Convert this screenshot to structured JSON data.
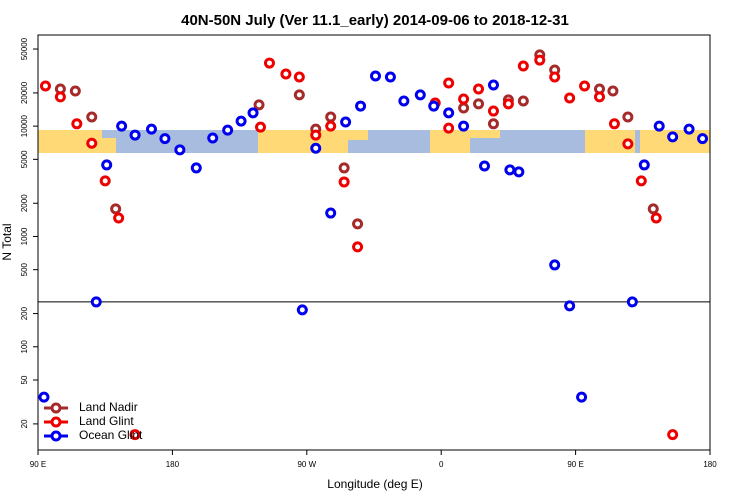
{
  "chart_data": {
    "type": "scatter",
    "title": "40N-50N July (Ver 11.1_early)   2014-09-06 to 2018-12-31",
    "x_label": "Longitude (deg E)",
    "y_label": "N Total",
    "log_y": true,
    "xlim": [
      90,
      540
    ],
    "xticks": [
      {
        "value": 90,
        "label": "90 E"
      },
      {
        "value": 180,
        "label": "180"
      },
      {
        "value": 270,
        "label": "90 W"
      },
      {
        "value": 360,
        "label": "0"
      },
      {
        "value": 450,
        "label": "90 E"
      },
      {
        "value": 540,
        "label": "180"
      }
    ],
    "ylim": [
      11.6,
      67000
    ],
    "yticks": [
      20,
      50,
      100,
      200,
      500,
      1000,
      2000,
      5000,
      10000,
      20000,
      50000
    ],
    "hline": 255,
    "legend": "bottom-left",
    "series": [
      {
        "name": "Land Nadir",
        "color": "#a52a2a",
        "x": [
          105,
          115,
          126,
          142,
          238,
          265,
          276,
          286,
          295,
          304,
          375,
          385,
          395,
          405,
          415,
          426,
          436,
          466,
          475,
          485,
          502
        ],
        "values": [
          21700,
          20800,
          12100,
          1780,
          15600,
          19200,
          9400,
          12100,
          4180,
          1300,
          14600,
          15900,
          10500,
          17300,
          16900,
          44200,
          32300,
          21700,
          20800,
          12100,
          1780
        ]
      },
      {
        "name": "Land Glint",
        "color": "#ee0000",
        "x": [
          95,
          105,
          116,
          126,
          135,
          144,
          155,
          239,
          245,
          256,
          265,
          276,
          286,
          295,
          304,
          356,
          365,
          365,
          375,
          385,
          395,
          405,
          415,
          426,
          436,
          446,
          456,
          466,
          476,
          485,
          494,
          504,
          515
        ],
        "values": [
          23100,
          18400,
          10500,
          7000,
          3190,
          1470,
          16,
          9800,
          37300,
          29700,
          27900,
          8300,
          10000,
          3120,
          805,
          16200,
          24600,
          9600,
          17600,
          21700,
          13700,
          15900,
          35100,
          39700,
          27900,
          18000,
          23100,
          18400,
          10500,
          6900,
          3190,
          1470,
          16
        ]
      },
      {
        "name": "Ocean Glint",
        "color": "#0000ee",
        "x": [
          94,
          129,
          136,
          146,
          155,
          166,
          175,
          185,
          196,
          207,
          217,
          226,
          234,
          267,
          276,
          286,
          296,
          306,
          316,
          326,
          335,
          346,
          355,
          365,
          375,
          389,
          395,
          406,
          412,
          436,
          446,
          454,
          488,
          496,
          506,
          515,
          526,
          535
        ],
        "values": [
          35,
          255,
          4450,
          10000,
          8300,
          9400,
          7700,
          6100,
          4180,
          7800,
          9200,
          11100,
          13200,
          216,
          6300,
          1630,
          10900,
          15200,
          28500,
          27900,
          16900,
          19200,
          15200,
          13200,
          10000,
          4350,
          23600,
          4010,
          3850,
          552,
          235,
          35,
          255,
          4450,
          10000,
          8000,
          9400,
          7700
        ]
      }
    ]
  }
}
